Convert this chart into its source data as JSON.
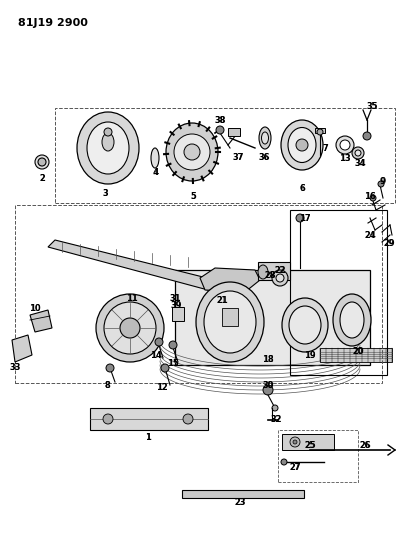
{
  "title": "81J19 2900",
  "bg_color": "#ffffff",
  "line_color": "#000000",
  "fig_width": 4.06,
  "fig_height": 5.33,
  "dpi": 100
}
